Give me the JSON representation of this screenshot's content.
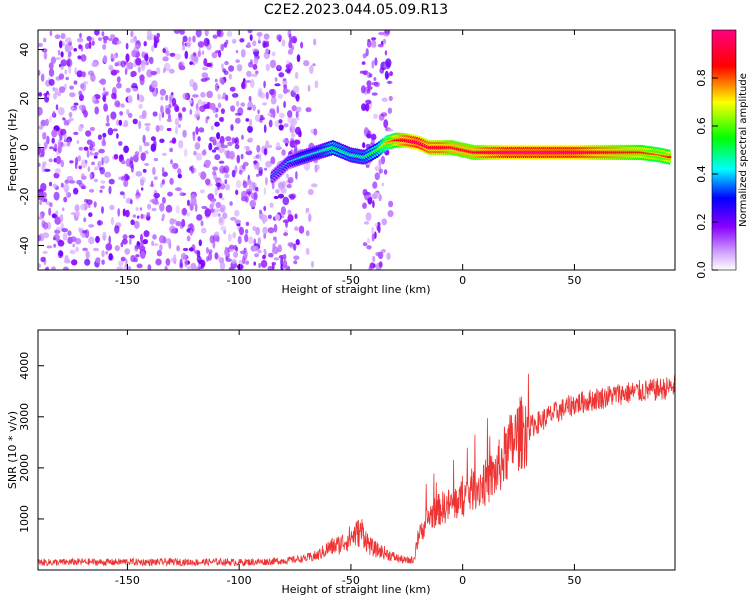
{
  "title": "C2E2.2023.044.05.09.R13",
  "chart_data": [
    {
      "type": "heatmap",
      "title": "C2E2.2023.044.05.09.R13",
      "xlabel": "Height of straight line (km)",
      "ylabel": "Frequency (Hz)",
      "xlim": [
        -190,
        95
      ],
      "ylim": [
        -50,
        48
      ],
      "xticks": [
        -150,
        -100,
        -50,
        0,
        50
      ],
      "yticks": [
        -40,
        -20,
        0,
        20,
        40
      ],
      "grid": false,
      "colorbar": {
        "label": "Normalized spectral amplitude",
        "range": [
          0,
          1
        ],
        "ticks": [
          0.0,
          0.2,
          0.4,
          0.6,
          0.8
        ],
        "colormap": [
          "#ffffff",
          "#8800ff",
          "#0000ff",
          "#00ffff",
          "#00ff00",
          "#ffff00",
          "#ff0000",
          "#ff00aa"
        ]
      },
      "ridge": {
        "x": [
          -85,
          -78,
          -72,
          -65,
          -58,
          -50,
          -44,
          -38,
          -34,
          -30,
          -26,
          -20,
          -15,
          -10,
          -5,
          0,
          5,
          10,
          20,
          30,
          40,
          50,
          60,
          70,
          80,
          88,
          93
        ],
        "frequency": [
          -12,
          -6,
          -4,
          -2,
          0,
          -3,
          -4,
          -1,
          2,
          3,
          3,
          2,
          0,
          0,
          0,
          -1,
          -2,
          -2,
          -2,
          -2,
          -2,
          -2,
          -2,
          -2,
          -2,
          -3,
          -4
        ],
        "amplitude": [
          0.35,
          0.4,
          0.45,
          0.45,
          0.55,
          0.5,
          0.5,
          0.6,
          0.75,
          0.85,
          0.95,
          1.0,
          0.95,
          0.95,
          0.9,
          0.9,
          0.9,
          0.95,
          1.0,
          1.0,
          1.0,
          1.0,
          0.95,
          0.9,
          0.85,
          0.8,
          0.85
        ]
      }
    },
    {
      "type": "line",
      "xlabel": "Height of straight line (km)",
      "ylabel": "SNR (10 * v/v)",
      "xlim": [
        -190,
        95
      ],
      "ylim": [
        0,
        4700
      ],
      "xticks": [
        -150,
        -100,
        -50,
        0,
        50
      ],
      "yticks": [
        1000,
        2000,
        3000,
        4000
      ],
      "grid": false,
      "color": "#ee3333",
      "series": [
        {
          "x": [
            -190,
            -180,
            -170,
            -160,
            -150,
            -140,
            -130,
            -120,
            -110,
            -100,
            -90,
            -80,
            -70,
            -65,
            -60,
            -55,
            -50,
            -48,
            -45,
            -42,
            -40,
            -35,
            -30,
            -25,
            -22,
            -20,
            -15,
            -10,
            -5,
            0,
            5,
            10,
            15,
            20,
            25,
            30,
            40,
            50,
            60,
            70,
            80,
            90,
            95
          ],
          "y": [
            150,
            150,
            160,
            150,
            160,
            150,
            160,
            150,
            160,
            150,
            160,
            180,
            230,
            280,
            430,
            500,
            640,
            700,
            760,
            500,
            420,
            340,
            240,
            180,
            200,
            630,
            1050,
            1200,
            1280,
            1400,
            1600,
            1700,
            1900,
            2350,
            2650,
            2800,
            3050,
            3250,
            3350,
            3450,
            3500,
            3550,
            3600
          ]
        }
      ]
    }
  ]
}
